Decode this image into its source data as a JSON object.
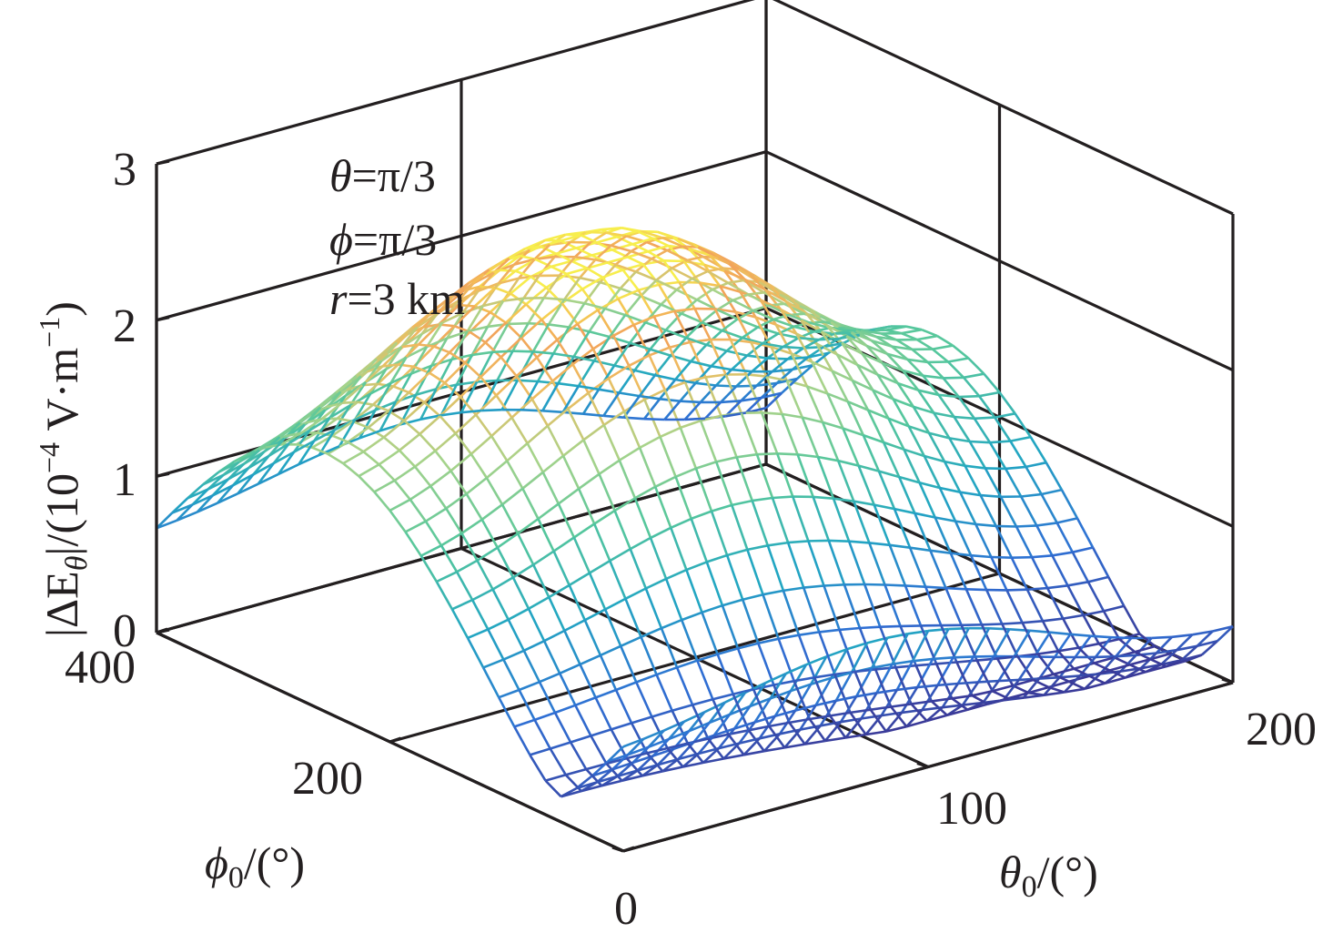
{
  "chart_data": {
    "type": "surface",
    "style": "mesh",
    "colormap": [
      "#3a3a98",
      "#2f6fd4",
      "#22a6c2",
      "#56c79c",
      "#a8d38a",
      "#eebd60",
      "#f2a35a",
      "#f7ee4d"
    ],
    "x": {
      "name": "theta0",
      "label_symbol": "θ",
      "label_sub": "0",
      "label_rest": "/(°)",
      "range": [
        0,
        200
      ],
      "ticks": [
        0,
        100,
        200
      ],
      "tick_labels": [
        "0",
        "100",
        "200"
      ]
    },
    "y": {
      "name": "phi0",
      "label_symbol": "ϕ",
      "label_sub": "0",
      "label_rest": "/(°)",
      "range": [
        0,
        400
      ],
      "ticks": [
        0,
        200,
        400
      ],
      "tick_labels": [
        "0",
        "200",
        "400"
      ]
    },
    "z": {
      "label_pre": "|ΔE",
      "label_sub": "θ",
      "label_mid": "|/(10",
      "label_sup": "−4",
      "label_mid2": " V·m",
      "label_sup2": "−1",
      "label_end": ")",
      "range": [
        0,
        3
      ],
      "ticks": [
        0,
        1,
        2,
        3
      ],
      "tick_labels": [
        "0",
        "1",
        "2",
        "3"
      ]
    },
    "annotations": [
      "θ=π/3",
      "ϕ=π/3",
      "r=3 km"
    ],
    "grid": true,
    "mesh_resolution": 30,
    "peak_value": 2.4
  }
}
